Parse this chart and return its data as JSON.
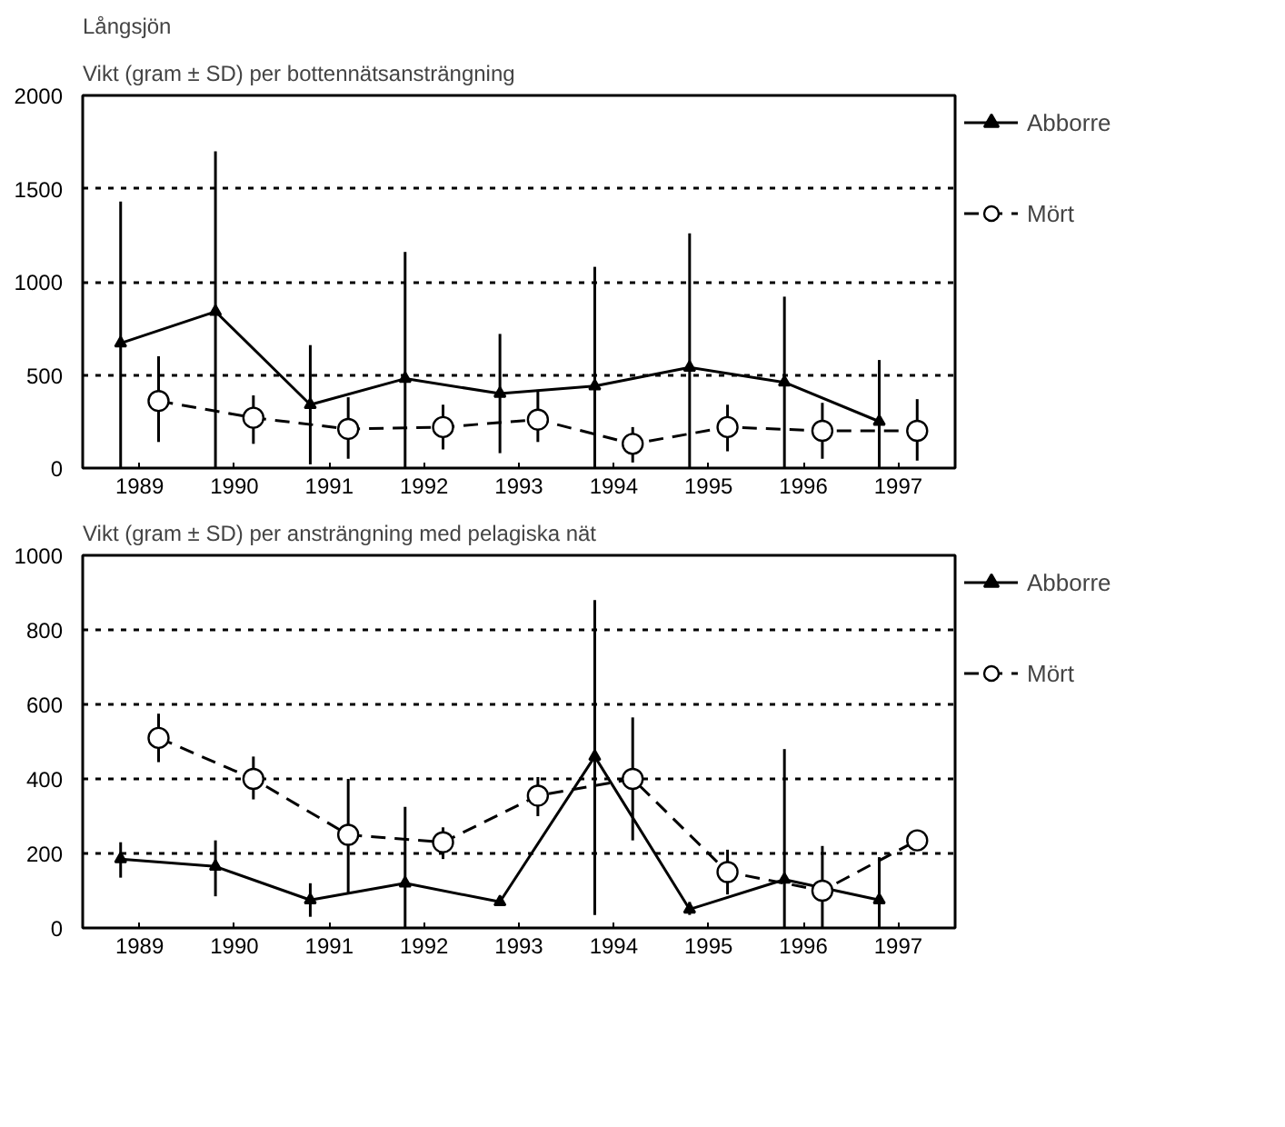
{
  "chart_data": [
    {
      "type": "line",
      "title": "Långsjön",
      "subtitle": "Vikt (gram ± SD) per bottennätsansträngning",
      "xlim": [
        1988.4,
        1997.6
      ],
      "xticks": [
        1989,
        1990,
        1991,
        1992,
        1993,
        1994,
        1995,
        1996,
        1997
      ],
      "series": [
        {
          "name": "Abborre",
          "color": "#000000",
          "marker": "triangle",
          "line_style": "solid",
          "x": [
            1988.8,
            1989.8,
            1990.8,
            1991.8,
            1992.8,
            1993.8,
            1994.8,
            1995.8,
            1996.8
          ],
          "values": [
            670,
            840,
            340,
            480,
            400,
            440,
            540,
            460,
            250
          ],
          "errors": [
            [
              0,
              1430
            ],
            [
              0,
              1700
            ],
            [
              20,
              660
            ],
            [
              0,
              1160
            ],
            [
              80,
              720
            ],
            [
              0,
              1080
            ],
            [
              0,
              1260
            ],
            [
              0,
              920
            ],
            [
              0,
              580
            ]
          ]
        },
        {
          "name": "Mört",
          "color": "#000000",
          "marker": "circle",
          "line_style": "dashed",
          "x": [
            1989.2,
            1990.2,
            1991.2,
            1992.2,
            1993.2,
            1994.2,
            1995.2,
            1996.2,
            1997.2
          ],
          "values": [
            360,
            270,
            210,
            220,
            260,
            130,
            220,
            200,
            200
          ],
          "errors": [
            [
              140,
              600
            ],
            [
              130,
              390
            ],
            [
              50,
              380
            ],
            [
              100,
              340
            ],
            [
              140,
              420
            ],
            [
              30,
              220
            ],
            [
              90,
              340
            ],
            [
              50,
              350
            ],
            [
              40,
              370
            ]
          ]
        }
      ],
      "ylim": [
        0,
        2000
      ],
      "yticks": [
        0,
        500,
        1000,
        1500,
        2000
      ],
      "grid": "y",
      "legend": "right"
    },
    {
      "type": "line",
      "title": "Vikt (gram ± SD) per ansträngning med pelagiska nät",
      "xlim": [
        1988.4,
        1997.6
      ],
      "xticks": [
        1989,
        1990,
        1991,
        1992,
        1993,
        1994,
        1995,
        1996,
        1997
      ],
      "series": [
        {
          "name": "Abborre",
          "color": "#000000",
          "marker": "triangle",
          "line_style": "solid",
          "x": [
            1988.8,
            1989.8,
            1990.8,
            1991.8,
            1992.8,
            1993.8,
            1994.8,
            1995.8,
            1996.8
          ],
          "values": [
            185,
            165,
            75,
            120,
            70,
            460,
            50,
            130,
            75
          ],
          "errors": [
            [
              135,
              230
            ],
            [
              85,
              235
            ],
            [
              30,
              120
            ],
            [
              0,
              325
            ],
            [
              65,
              75
            ],
            [
              35,
              880
            ],
            [
              35,
              70
            ],
            [
              0,
              480
            ],
            [
              0,
              190
            ]
          ]
        },
        {
          "name": "Mört",
          "color": "#000000",
          "marker": "circle",
          "line_style": "dashed",
          "x": [
            1989.2,
            1990.2,
            1991.2,
            1992.2,
            1993.2,
            1994.2,
            1995.2,
            1996.2,
            1997.2
          ],
          "values": [
            510,
            400,
            250,
            230,
            355,
            400,
            150,
            100,
            235
          ],
          "errors": [
            [
              445,
              575
            ],
            [
              345,
              460
            ],
            [
              95,
              400
            ],
            [
              185,
              270
            ],
            [
              300,
              405
            ],
            [
              235,
              565
            ],
            [
              90,
              210
            ],
            [
              0,
              220
            ],
            [
              220,
              255
            ]
          ]
        }
      ],
      "ylim": [
        0,
        1000
      ],
      "yticks": [
        0,
        200,
        400,
        600,
        800,
        1000
      ],
      "grid": "y",
      "legend": "right"
    }
  ]
}
